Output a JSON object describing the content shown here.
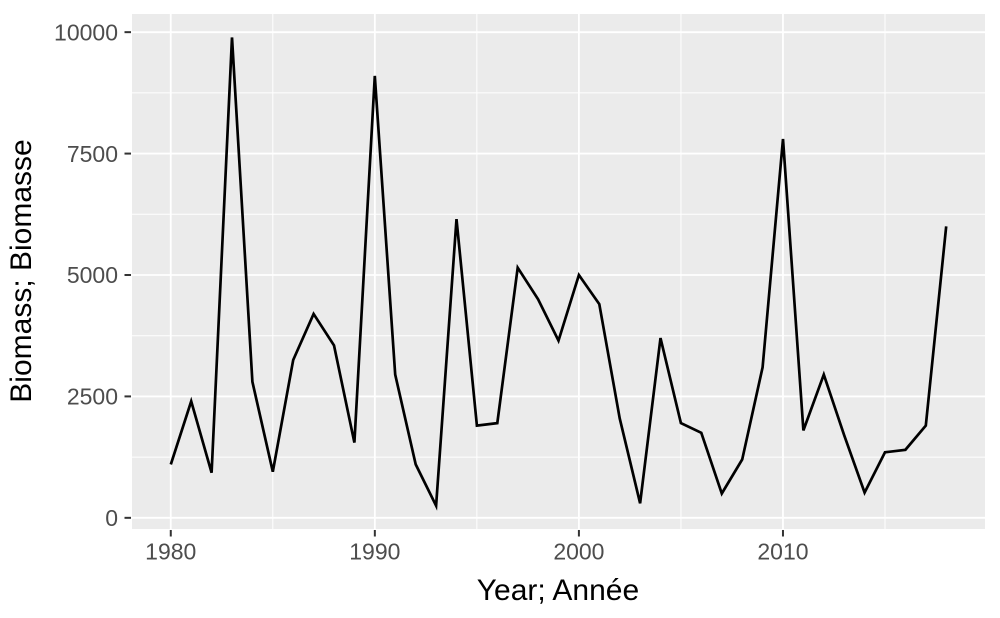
{
  "figure": {
    "background": "#FFFFFF",
    "panel_background": "#EBEBEB",
    "grid_color": "#FFFFFF",
    "line_color": "#000000",
    "tick_color": "#333333",
    "tick_label_color": "#4D4D4D",
    "axis_title_color": "#000000"
  },
  "chart_data": {
    "type": "line",
    "title": "",
    "xlabel": "Year; Année",
    "ylabel": "Biomass; Biomasse",
    "style": "ggplot2-grey",
    "grid": true,
    "legend": "none",
    "x": [
      1980,
      1981,
      1982,
      1983,
      1984,
      1985,
      1986,
      1987,
      1988,
      1989,
      1990,
      1991,
      1992,
      1993,
      1994,
      1995,
      1996,
      1997,
      1998,
      1999,
      2000,
      2001,
      2002,
      2003,
      2004,
      2005,
      2006,
      2007,
      2008,
      2009,
      2010,
      2011,
      2012,
      2013,
      2014,
      2015,
      2016,
      2017,
      2018
    ],
    "series": [
      {
        "name": "biomass",
        "values": [
          1100,
          2400,
          930,
          9890,
          2800,
          950,
          3250,
          4200,
          3550,
          1550,
          9100,
          2950,
          1100,
          250,
          6150,
          1900,
          1950,
          5150,
          4500,
          3650,
          5000,
          4400,
          2050,
          300,
          3700,
          1950,
          1750,
          500,
          1200,
          3100,
          7800,
          1800,
          2950,
          1700,
          520,
          1350,
          1400,
          1900,
          6000
        ]
      }
    ],
    "xlim": [
      1978.1,
      2019.9
    ],
    "ylim": [
      -230,
      10374
    ],
    "x_major_ticks": [
      1980,
      1990,
      2000,
      2010
    ],
    "x_minor_ticks": [
      1985,
      1995,
      2005,
      2015
    ],
    "y_major_ticks": [
      0,
      2500,
      5000,
      7500,
      10000
    ],
    "y_minor_ticks": [
      1250,
      3750,
      6250,
      8750
    ],
    "x_tick_labels": [
      "1980",
      "1990",
      "2000",
      "2010"
    ],
    "y_tick_labels": [
      "0",
      "2500",
      "5000",
      "7500",
      "10000"
    ]
  }
}
